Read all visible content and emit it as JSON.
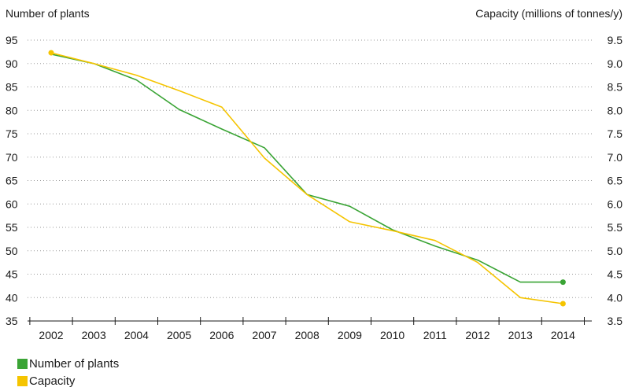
{
  "chart_data": {
    "type": "line",
    "categories": [
      "2002",
      "2003",
      "2004",
      "2005",
      "2006",
      "2007",
      "2008",
      "2009",
      "2010",
      "2011",
      "2012",
      "2013",
      "2014"
    ],
    "left_axis": {
      "title": "Number of plants",
      "range": [
        35,
        95
      ],
      "ticks": [
        35,
        40,
        45,
        50,
        55,
        60,
        65,
        70,
        75,
        80,
        85,
        90,
        95
      ]
    },
    "right_axis": {
      "title": "Capacity (millions of tonnes/y)",
      "range": [
        3.5,
        9.5
      ],
      "ticks": [
        "3.5",
        "4.0",
        "4.5",
        "5.0",
        "5.5",
        "6.0",
        "6.5",
        "7.0",
        "7.5",
        "8.0",
        "8.5",
        "9.0",
        "9.5"
      ]
    },
    "series": [
      {
        "name": "Number of plants",
        "axis": "left",
        "color": "#3aa435",
        "values": [
          92,
          90,
          86.5,
          80.2,
          76,
          72,
          62,
          59.5,
          54.5,
          51,
          48,
          43.3,
          43.3
        ]
      },
      {
        "name": "Capacity",
        "axis": "right",
        "color": "#f5c400",
        "values": [
          9.23,
          9.0,
          8.75,
          8.42,
          8.07,
          6.98,
          6.2,
          5.62,
          5.43,
          5.22,
          4.75,
          4.0,
          3.87
        ]
      }
    ],
    "grid": "horizontal dotted",
    "legend_position": "bottom-left"
  }
}
